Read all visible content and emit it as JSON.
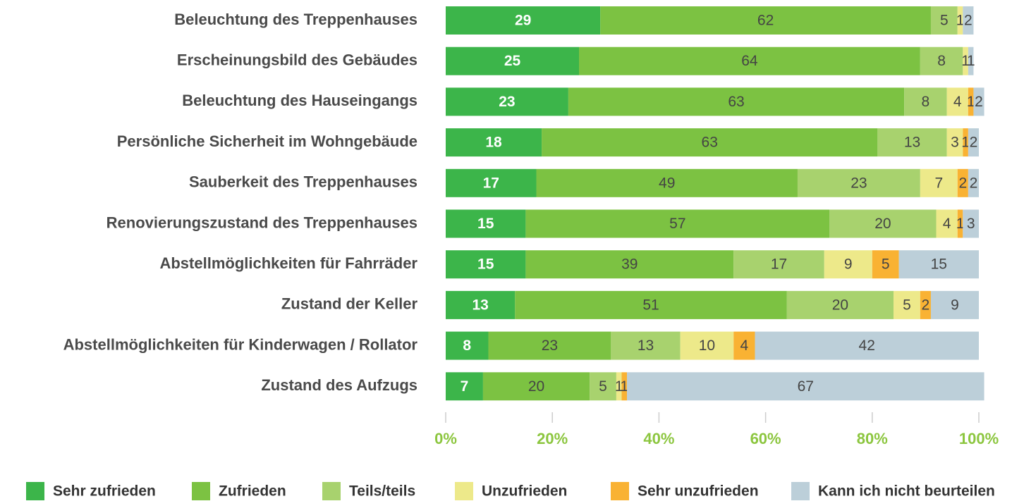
{
  "chart_data": {
    "type": "stacked-bar-horizontal",
    "categories": [
      "Beleuchtung des Treppenhauses",
      "Erscheinungsbild des Gebäudes",
      "Beleuchtung des Hauseingangs",
      "Persönliche Sicherheit im Wohngebäude",
      "Sauberkeit des Treppenhauses",
      "Renovierungszustand des Treppenhauses",
      "Abstellmöglichkeiten für Fahrräder",
      "Zustand der Keller",
      "Abstellmöglichkeiten für Kinderwagen / Rollator",
      "Zustand des Aufzugs"
    ],
    "series": [
      {
        "name": "Sehr zufrieden",
        "color": "#3cb54a",
        "values": [
          29,
          25,
          23,
          18,
          17,
          15,
          15,
          13,
          8,
          7
        ]
      },
      {
        "name": "Zufrieden",
        "color": "#7cc242",
        "values": [
          62,
          64,
          63,
          63,
          49,
          57,
          39,
          51,
          23,
          20
        ]
      },
      {
        "name": "Teils/teils",
        "color": "#a8d26e",
        "values": [
          5,
          8,
          8,
          13,
          23,
          20,
          17,
          20,
          13,
          5
        ]
      },
      {
        "name": "Unzufrieden",
        "color": "#ede98a",
        "values": [
          1,
          1,
          4,
          3,
          7,
          4,
          9,
          5,
          10,
          1
        ]
      },
      {
        "name": "Sehr unzufrieden",
        "color": "#f9b233",
        "values": [
          null,
          null,
          1,
          1,
          2,
          1,
          5,
          2,
          4,
          1
        ]
      },
      {
        "name": "Kann ich nicht beurteilen",
        "color": "#bccfd9",
        "values": [
          2,
          1,
          2,
          2,
          2,
          3,
          15,
          9,
          42,
          67
        ]
      }
    ],
    "xlim": [
      0,
      100
    ],
    "xticks": [
      {
        "value": 0,
        "label": "0%"
      },
      {
        "value": 20,
        "label": "20%"
      },
      {
        "value": 40,
        "label": "40%"
      },
      {
        "value": 60,
        "label": "60%"
      },
      {
        "value": 80,
        "label": "80%"
      },
      {
        "value": 100,
        "label": "100%"
      }
    ],
    "legend": "bottom"
  }
}
